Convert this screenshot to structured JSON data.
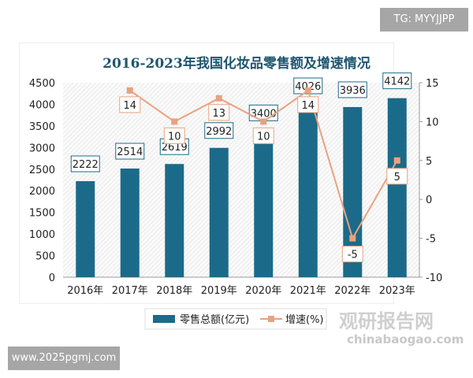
{
  "watermarks": {
    "tg": "TG: MYYJJPP",
    "www": "www.2025pgmj.com",
    "brand": "观研报告网",
    "brand_url": "chinabaogao.com"
  },
  "chart_data": {
    "type": "bar+line",
    "title": "2016-2023年我国化妆品零售额及增速情况",
    "categories": [
      "2016年",
      "2017年",
      "2018年",
      "2019年",
      "2020年",
      "2021年",
      "2022年",
      "2023年"
    ],
    "series": [
      {
        "name": "零售总额(亿元)",
        "type": "bar",
        "axis": "left",
        "color": "#1c6a89",
        "values": [
          2222,
          2514,
          2619,
          2992,
          3400,
          4026,
          3936,
          4142
        ]
      },
      {
        "name": "增速(%)",
        "type": "line",
        "axis": "right",
        "color": "#e9a27f",
        "values": [
          null,
          14,
          10,
          13,
          10,
          14,
          -5,
          5
        ]
      }
    ],
    "left_axis": {
      "min": 0,
      "max": 4500,
      "ticks": [
        "0",
        "500",
        "1000",
        "1500",
        "2000",
        "2500",
        "3000",
        "3500",
        "4000",
        "4500"
      ]
    },
    "right_axis": {
      "min": -10,
      "max": 15,
      "ticks": [
        "-10",
        "-5",
        "0",
        "5",
        "10",
        "15"
      ]
    },
    "legend": "bottom"
  }
}
